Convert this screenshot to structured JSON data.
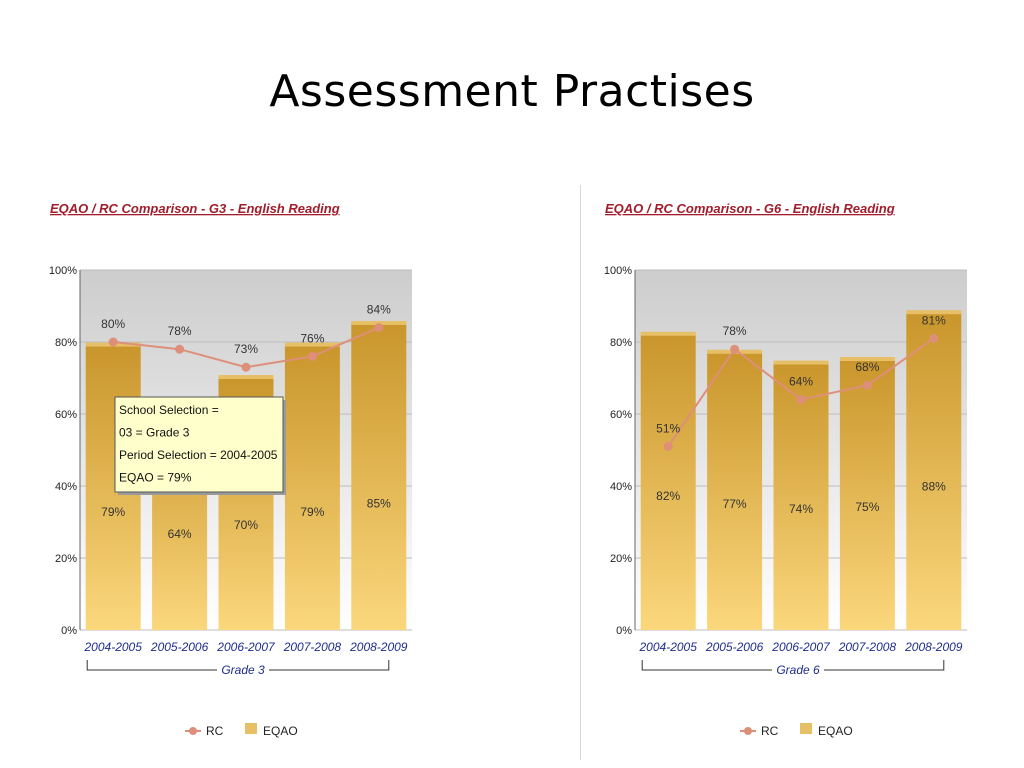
{
  "slide": {
    "title": "Assessment Practises"
  },
  "chart_data": [
    {
      "type": "bar",
      "title": "EQAO / RC Comparison - G3 - English Reading",
      "categories": [
        "2004-2005",
        "2005-2006",
        "2006-2007",
        "2007-2008",
        "2008-2009"
      ],
      "group_label": "Grade 3",
      "series": [
        {
          "name": "EQAO",
          "type": "bar",
          "values": [
            79,
            64,
            70,
            79,
            85
          ],
          "labels": [
            "79%",
            "64%",
            "70%",
            "79%",
            "85%"
          ]
        },
        {
          "name": "RC",
          "type": "line",
          "values": [
            80,
            78,
            73,
            76,
            84
          ],
          "labels": [
            "80%",
            "78%",
            "73%",
            "76%",
            "84%"
          ]
        }
      ],
      "ylim": [
        0,
        100
      ],
      "y_ticks": [
        "0%",
        "20%",
        "40%",
        "60%",
        "80%",
        "100%"
      ],
      "grid": true,
      "legend": [
        "RC",
        "EQAO"
      ],
      "legend_position": "bottom",
      "tooltip": {
        "lines": [
          "School Selection =",
          "03 = Grade 3",
          "Period Selection = 2004-2005",
          "EQAO = 79%"
        ]
      }
    },
    {
      "type": "bar",
      "title": "EQAO / RC Comparison - G6 - English Reading",
      "categories": [
        "2004-2005",
        "2005-2006",
        "2006-2007",
        "2007-2008",
        "2008-2009"
      ],
      "group_label": "Grade 6",
      "series": [
        {
          "name": "EQAO",
          "type": "bar",
          "values": [
            82,
            77,
            74,
            75,
            88
          ],
          "labels": [
            "82%",
            "77%",
            "74%",
            "75%",
            "88%"
          ]
        },
        {
          "name": "RC",
          "type": "line",
          "values": [
            51,
            78,
            64,
            68,
            81
          ],
          "labels": [
            "51%",
            "78%",
            "64%",
            "68%",
            "81%"
          ]
        }
      ],
      "ylim": [
        0,
        100
      ],
      "y_ticks": [
        "0%",
        "20%",
        "40%",
        "60%",
        "80%",
        "100%"
      ],
      "grid": true,
      "legend": [
        "RC",
        "EQAO"
      ],
      "legend_position": "bottom"
    }
  ],
  "colors": {
    "bar_top": "#c9962c",
    "bar_bottom": "#fbd77c",
    "bar_cap": "#e7bf66",
    "line": "#de8f7a",
    "title_link": "#a11d2b",
    "axis_label": "#1f2d8c",
    "plot_bg_top": "#cdcdcd",
    "plot_bg_bottom": "#ffffff"
  }
}
